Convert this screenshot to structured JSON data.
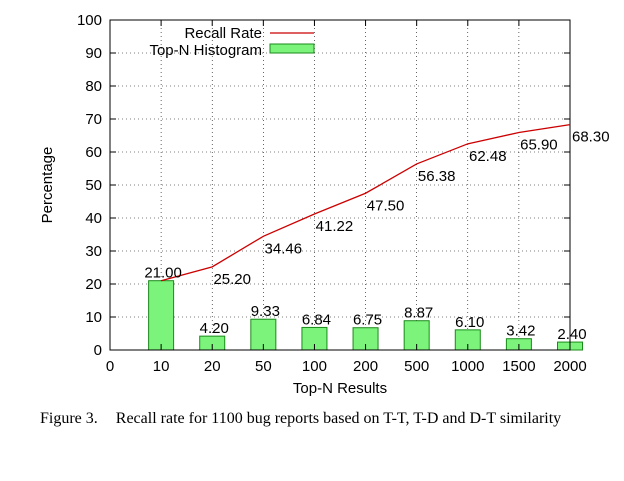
{
  "chart_data": {
    "type": "bar",
    "xlabel": "Top-N Results",
    "ylabel": "Percentage",
    "ylim": [
      0,
      100
    ],
    "yticks": [
      "0",
      "10",
      "20",
      "30",
      "40",
      "50",
      "60",
      "70",
      "80",
      "90",
      "100"
    ],
    "x_tick_labels": [
      "0",
      "10",
      "20",
      "50",
      "100",
      "200",
      "500",
      "1000",
      "1500",
      "2000"
    ],
    "categories": [
      "10",
      "20",
      "50",
      "100",
      "200",
      "500",
      "1000",
      "1500",
      "2000"
    ],
    "grid": true,
    "legend_position": "top-left",
    "series": [
      {
        "name": "Recall Rate",
        "type": "line",
        "color": "#cc0000",
        "values": [
          21.0,
          25.2,
          34.46,
          41.22,
          47.5,
          56.38,
          62.48,
          65.9,
          68.3
        ],
        "labels": [
          "21.00",
          "25.20",
          "34.46",
          "41.22",
          "47.50",
          "56.38",
          "62.48",
          "65.90",
          "68.30"
        ]
      },
      {
        "name": "Top-N Histogram",
        "type": "bar",
        "color": "#7cf47c",
        "values": [
          21.0,
          4.2,
          9.33,
          6.84,
          6.75,
          8.87,
          6.1,
          3.42,
          2.4
        ],
        "labels": [
          "21.00",
          "4.20",
          "9.33",
          "6.84",
          "6.75",
          "8.87",
          "6.10",
          "3.42",
          "2.40"
        ]
      }
    ]
  },
  "caption": {
    "number": "Figure 3.",
    "text": "Recall rate for 1100 bug reports based on T-T, T-D and D-T similarity"
  }
}
